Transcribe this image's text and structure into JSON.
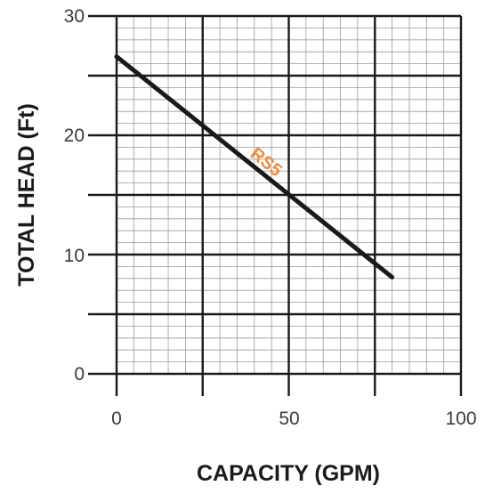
{
  "chart_data": {
    "type": "line",
    "xlabel": "CAPACITY (GPM)",
    "ylabel": "TOTAL HEAD (Ft)",
    "xlim": [
      0,
      100
    ],
    "ylim": [
      0,
      30
    ],
    "x_ticks": [
      "0",
      "50",
      "100"
    ],
    "y_ticks": [
      "0",
      "10",
      "20",
      "30"
    ],
    "grid": true,
    "series": [
      {
        "name": "RS5",
        "x": [
          0,
          80
        ],
        "y": [
          26.6,
          8.1
        ],
        "color": "#1a1a1a",
        "label_color": "#f08a3c"
      }
    ]
  }
}
